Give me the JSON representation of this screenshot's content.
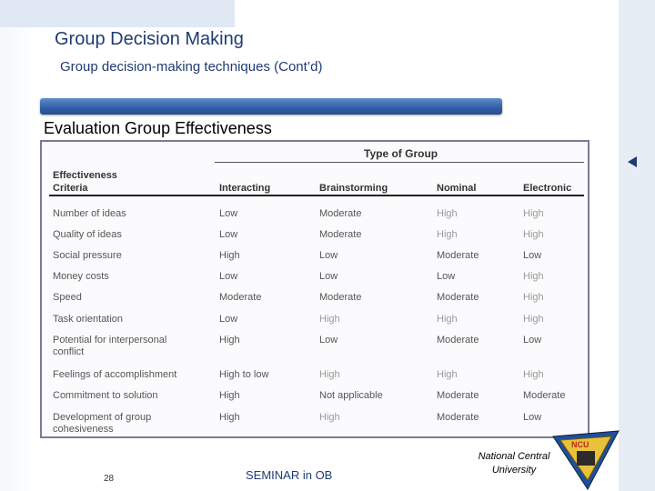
{
  "slide": {
    "title": "Group Decision Making",
    "subtitle": "Group decision-making techniques (Cont’d)",
    "section_heading": "Evaluation Group Effectiveness"
  },
  "table": {
    "group_header": "Type of Group",
    "criteria_header": [
      "Effectiveness",
      "Criteria"
    ],
    "columns": [
      "Interacting",
      "Brainstorming",
      "Nominal",
      "Electronic"
    ],
    "rows": [
      {
        "criterion": "Number of ideas",
        "values": [
          "Low",
          "Moderate",
          "High",
          "High"
        ]
      },
      {
        "criterion": "Quality of ideas",
        "values": [
          "Low",
          "Moderate",
          "High",
          "High"
        ]
      },
      {
        "criterion": "Social pressure",
        "values": [
          "High",
          "Low",
          "Moderate",
          "Low"
        ]
      },
      {
        "criterion": "Money costs",
        "values": [
          "Low",
          "Low",
          "Low",
          "High"
        ]
      },
      {
        "criterion": "Speed",
        "values": [
          "Moderate",
          "Moderate",
          "Moderate",
          "High"
        ]
      },
      {
        "criterion": "Task orientation",
        "values": [
          "Low",
          "High",
          "High",
          "High"
        ]
      },
      {
        "criterion": "Potential for interpersonal conflict",
        "values": [
          "High",
          "Low",
          "Moderate",
          "Low"
        ]
      },
      {
        "criterion": "Feelings of accomplishment",
        "values": [
          "High to low",
          "High",
          "High",
          "High"
        ]
      },
      {
        "criterion": "Commitment to solution",
        "values": [
          "High",
          "Not applicable",
          "Moderate",
          "Moderate"
        ]
      },
      {
        "criterion": "Development of group cohesiveness",
        "values": [
          "High",
          "High",
          "Moderate",
          "Low"
        ]
      }
    ]
  },
  "footer": {
    "page_number": "28",
    "center_text": "SEMINAR in OB",
    "org_line1": "National Central",
    "org_line2": "University"
  },
  "logo": {
    "name": "university-seal-logo",
    "text": "NCU"
  },
  "colors": {
    "title": "#1f3b73",
    "bar": "#2f5ea8"
  }
}
